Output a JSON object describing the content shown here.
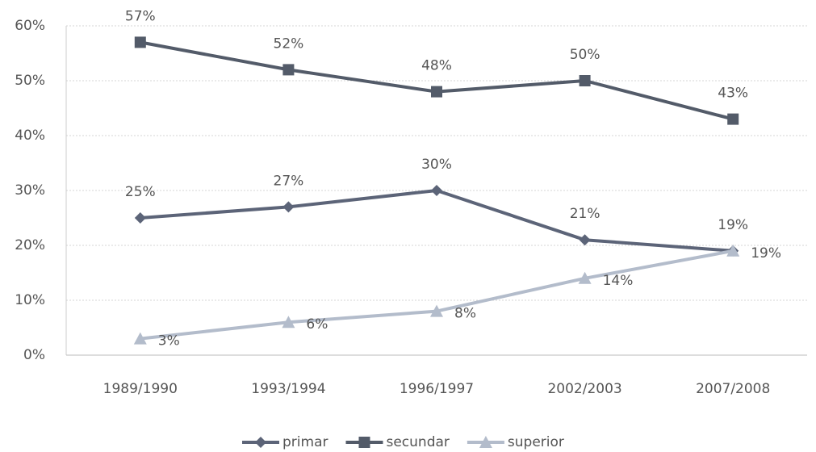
{
  "chart_data": {
    "type": "line",
    "categories": [
      "1989/1990",
      "1993/1994",
      "1996/1997",
      "2002/2003",
      "2007/2008"
    ],
    "series": [
      {
        "name": "primar",
        "color": "#5c6478",
        "marker": "diamond",
        "values": [
          25,
          27,
          30,
          21,
          19
        ],
        "value_labels": [
          "25%",
          "27%",
          "30%",
          "21%",
          "19%"
        ]
      },
      {
        "name": "secundar",
        "color": "#535b69",
        "marker": "square",
        "values": [
          57,
          52,
          48,
          50,
          43
        ],
        "value_labels": [
          "57%",
          "52%",
          "48%",
          "50%",
          "43%"
        ]
      },
      {
        "name": "superior",
        "color": "#b3bccb",
        "marker": "triangle",
        "values": [
          3,
          6,
          8,
          14,
          19
        ],
        "value_labels": [
          "3%",
          "6%",
          "8%",
          "14%",
          "19%"
        ]
      }
    ],
    "ylim": [
      0,
      60
    ],
    "yticks": [
      {
        "value": 0,
        "label": "0%"
      },
      {
        "value": 10,
        "label": "10%"
      },
      {
        "value": 20,
        "label": "20%"
      },
      {
        "value": 30,
        "label": "30%"
      },
      {
        "value": 40,
        "label": "40%"
      },
      {
        "value": 50,
        "label": "50%"
      },
      {
        "value": 60,
        "label": "60%"
      }
    ],
    "grid": true,
    "legend": "bottom"
  }
}
